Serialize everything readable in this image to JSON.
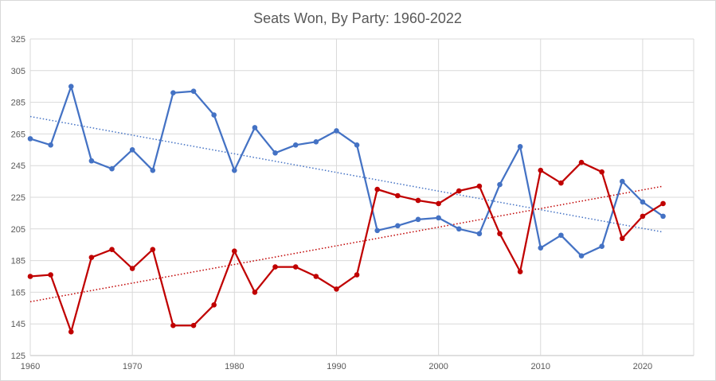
{
  "chart_data": {
    "type": "line",
    "title": "Seats Won, By Party: 1960-2022",
    "xlabel": "",
    "ylabel": "",
    "xlim": [
      1960,
      2025
    ],
    "ylim": [
      125,
      325
    ],
    "x_ticks": [
      1960,
      1970,
      1980,
      1990,
      2000,
      2010,
      2020
    ],
    "y_ticks": [
      125,
      145,
      165,
      185,
      205,
      225,
      245,
      265,
      285,
      305,
      325
    ],
    "grid": true,
    "legend": "none",
    "x": [
      1960,
      1962,
      1964,
      1966,
      1968,
      1970,
      1972,
      1974,
      1976,
      1978,
      1980,
      1982,
      1984,
      1986,
      1988,
      1990,
      1992,
      1994,
      1996,
      1998,
      2000,
      2002,
      2004,
      2006,
      2008,
      2010,
      2012,
      2014,
      2016,
      2018,
      2020,
      2022
    ],
    "series": [
      {
        "color": "#4472c4",
        "values": [
          262,
          258,
          295,
          248,
          243,
          255,
          242,
          291,
          292,
          277,
          242,
          269,
          253,
          258,
          260,
          267,
          258,
          204,
          207,
          211,
          212,
          205,
          202,
          233,
          257,
          193,
          201,
          188,
          194,
          235,
          222,
          213
        ],
        "trendline": [
          276,
          203
        ]
      },
      {
        "color": "#c00000",
        "values": [
          175,
          176,
          140,
          187,
          192,
          180,
          192,
          144,
          144,
          157,
          191,
          165,
          181,
          181,
          175,
          167,
          176,
          230,
          226,
          223,
          221,
          229,
          232,
          202,
          178,
          242,
          234,
          247,
          241,
          199,
          213,
          221
        ],
        "trendline": [
          159,
          232
        ]
      }
    ]
  }
}
